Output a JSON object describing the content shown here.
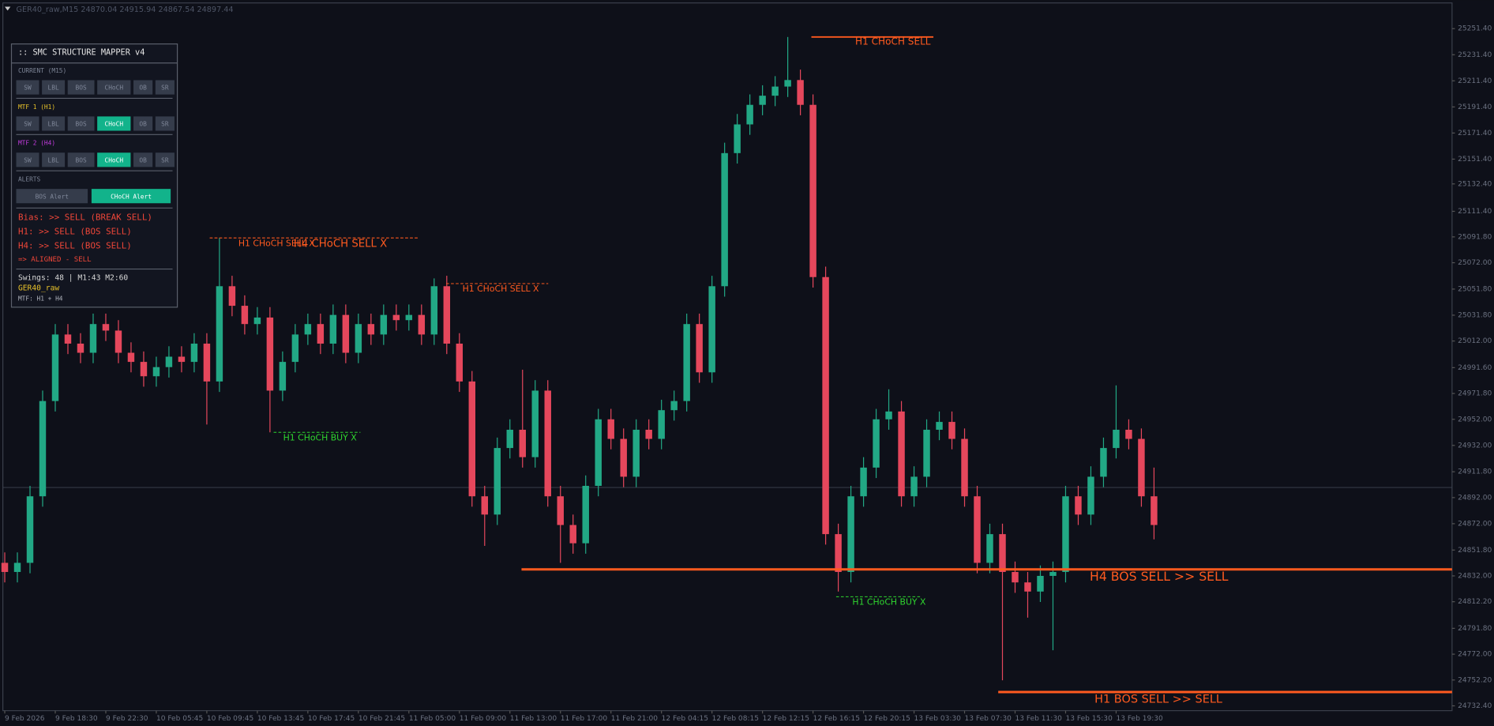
{
  "header": "GER40_raw,M15  24870.04 24915.94 24867.54 24897.44",
  "chart_data": {
    "type": "candlestick",
    "up_color": "#22a885",
    "down_color": "#e5475c",
    "ylim": [
      24728.7,
      25271.1
    ],
    "yticks": [
      {
        "value": 25251.4,
        "label": "25251.40"
      },
      {
        "value": 25231.4,
        "label": "25231.40"
      },
      {
        "value": 25211.4,
        "label": "25211.40"
      },
      {
        "value": 25191.4,
        "label": "25191.40"
      },
      {
        "value": 25171.4,
        "label": "25171.40"
      },
      {
        "value": 25151.4,
        "label": "25151.40"
      },
      {
        "value": 25132.4,
        "label": "25132.40"
      },
      {
        "value": 25111.4,
        "label": "25111.40"
      },
      {
        "value": 25091.8,
        "label": "25091.80"
      },
      {
        "value": 25072,
        "label": "25072.00"
      },
      {
        "value": 25051.8,
        "label": "25051.80"
      },
      {
        "value": 25031.8,
        "label": "25031.80"
      },
      {
        "value": 25012,
        "label": "25012.00"
      },
      {
        "value": 24991.6,
        "label": "24991.60"
      },
      {
        "value": 24971.8,
        "label": "24971.80"
      },
      {
        "value": 24952,
        "label": "24952.00"
      },
      {
        "value": 24932,
        "label": "24932.00"
      },
      {
        "value": 24911.8,
        "label": "24911.80"
      },
      {
        "value": 24892,
        "label": "24892.00"
      },
      {
        "value": 24872,
        "label": "24872.00"
      },
      {
        "value": 24851.8,
        "label": "24851.80"
      },
      {
        "value": 24832,
        "label": "24832.00"
      },
      {
        "value": 24812.2,
        "label": "24812.20"
      },
      {
        "value": 24791.8,
        "label": "24791.80"
      },
      {
        "value": 24772,
        "label": "24772.00"
      },
      {
        "value": 24752.2,
        "label": "24752.20"
      },
      {
        "value": 24732.4,
        "label": "24732.40"
      }
    ],
    "xlim": [
      -0.15,
      114.6
    ],
    "xticks": [
      {
        "value": 0,
        "label": "9 Feb 2026"
      },
      {
        "value": 4,
        "label": "9 Feb 18:30"
      },
      {
        "value": 8,
        "label": "9 Feb 22:30"
      },
      {
        "value": 12,
        "label": "10 Feb 05:45"
      },
      {
        "value": 16,
        "label": "10 Feb 09:45"
      },
      {
        "value": 20,
        "label": "10 Feb 13:45"
      },
      {
        "value": 24,
        "label": "10 Feb 17:45"
      },
      {
        "value": 28,
        "label": "10 Feb 21:45"
      },
      {
        "value": 32,
        "label": "11 Feb 05:00"
      },
      {
        "value": 36,
        "label": "11 Feb 09:00"
      },
      {
        "value": 40,
        "label": "11 Feb 13:00"
      },
      {
        "value": 44,
        "label": "11 Feb 17:00"
      },
      {
        "value": 48,
        "label": "11 Feb 21:00"
      },
      {
        "value": 52,
        "label": "12 Feb 04:15"
      },
      {
        "value": 56,
        "label": "12 Feb 08:15"
      },
      {
        "value": 60,
        "label": "12 Feb 12:15"
      },
      {
        "value": 64,
        "label": "12 Feb 16:15"
      },
      {
        "value": 68,
        "label": "12 Feb 20:15"
      },
      {
        "value": 72,
        "label": "13 Feb 03:30"
      },
      {
        "value": 76,
        "label": "13 Feb 07:30"
      },
      {
        "value": 80,
        "label": "13 Feb 11:30"
      },
      {
        "value": 84,
        "label": "13 Feb 15:30"
      },
      {
        "value": 88,
        "label": "13 Feb 19:30"
      }
    ],
    "open": [
      24842,
      24835,
      24842,
      24893,
      24966,
      25017,
      25010,
      25003,
      25025,
      25020,
      25003,
      24996,
      24985,
      24992,
      25000,
      24996,
      25010,
      24981,
      25054,
      25039,
      25025,
      25030,
      24974,
      24996,
      25017,
      25025,
      25010,
      25032,
      25003,
      25025,
      25017,
      25032,
      25028,
      25032,
      25017,
      25054,
      25010,
      24981,
      24893,
      24879,
      24930,
      24944,
      24923,
      24974,
      24893,
      24871,
      24857,
      24901,
      24952,
      24937,
      24908,
      24944,
      24937,
      24959,
      24966,
      25025,
      24988,
      25054,
      25156,
      25178,
      25193,
      25200,
      25207,
      25212,
      25193,
      25061,
      24864,
      24835,
      24893,
      24915,
      24952,
      24958,
      24893,
      24908,
      24944,
      24950,
      24937,
      24893,
      24842,
      24864,
      24835,
      24827,
      24820,
      24832,
      24835,
      24893,
      24879,
      24908,
      24930,
      24944,
      24937,
      24893
    ],
    "high": [
      24850,
      24850,
      24901,
      24974,
      25025,
      25025,
      25018,
      25033,
      25033,
      25028,
      25011,
      25004,
      25000,
      25008,
      25008,
      25018,
      25018,
      25091,
      25062,
      25047,
      25038,
      25038,
      25004,
      25025,
      25033,
      25033,
      25040,
      25040,
      25033,
      25033,
      25040,
      25040,
      25040,
      25040,
      25060,
      25062,
      25018,
      24989,
      24901,
      24938,
      24952,
      24990,
      24982,
      24982,
      24901,
      24879,
      24909,
      24960,
      24960,
      24945,
      24952,
      24952,
      24967,
      24974,
      25033,
      25033,
      25062,
      25164,
      25186,
      25201,
      25208,
      25215,
      25245,
      25220,
      25201,
      25069,
      24872,
      24901,
      24923,
      24960,
      24975,
      24966,
      24916,
      24952,
      24958,
      24958,
      24945,
      24901,
      24872,
      24872,
      24843,
      24835,
      24840,
      24843,
      24901,
      24901,
      24916,
      24938,
      24978,
      24952,
      24945,
      24915
    ],
    "low": [
      24827,
      24827,
      24834,
      24885,
      24958,
      25002,
      24995,
      24995,
      25012,
      24995,
      24988,
      24977,
      24977,
      24984,
      24988,
      24988,
      24948,
      24973,
      25031,
      25017,
      25017,
      24942,
      24966,
      24988,
      25009,
      25002,
      25002,
      24995,
      24995,
      25009,
      25009,
      25020,
      25020,
      25009,
      25009,
      25002,
      24973,
      24885,
      24855,
      24871,
      24922,
      24915,
      24915,
      24885,
      24842,
      24849,
      24849,
      24893,
      24929,
      24900,
      24900,
      24929,
      24929,
      24951,
      24958,
      24980,
      24980,
      25046,
      25148,
      25170,
      25185,
      25192,
      25199,
      25185,
      25053,
      24856,
      24820,
      24827,
      24885,
      24907,
      24944,
      24885,
      24885,
      24900,
      24936,
      24929,
      24885,
      24834,
      24834,
      24752,
      24819,
      24800,
      24812,
      24775,
      24827,
      24871,
      24871,
      24900,
      24922,
      24929,
      24885,
      24860
    ],
    "close": [
      24835,
      24842,
      24893,
      24966,
      25017,
      25010,
      25003,
      25025,
      25020,
      25003,
      24996,
      24985,
      24992,
      25000,
      24996,
      25010,
      24981,
      25054,
      25039,
      25025,
      25030,
      24974,
      24996,
      25017,
      25025,
      25010,
      25032,
      25003,
      25025,
      25017,
      25032,
      25028,
      25032,
      25017,
      25054,
      25010,
      24981,
      24893,
      24879,
      24930,
      24944,
      24923,
      24974,
      24893,
      24871,
      24857,
      24901,
      24952,
      24937,
      24908,
      24944,
      24937,
      24959,
      24966,
      25025,
      24988,
      25054,
      25156,
      25178,
      25193,
      25200,
      25207,
      25212,
      25193,
      25061,
      24864,
      24835,
      24893,
      24915,
      24952,
      24958,
      24893,
      24908,
      24944,
      24950,
      24937,
      24893,
      24842,
      24864,
      24835,
      24827,
      24820,
      24832,
      24835,
      24893,
      24879,
      24908,
      24930,
      24944,
      24937,
      24893,
      24871
    ],
    "levels": [
      {
        "price": 25245,
        "label": "H1 CHoCH SELL",
        "color": "#ff5a1f"
      },
      {
        "price": 25091,
        "label": "H1 CHoCH SELL X",
        "color": "#ff5a1f"
      },
      {
        "price": 25091,
        "label": "H4 CHoCH SELL X",
        "color": "#ff5a1f"
      },
      {
        "price": 25056,
        "label": "H1 CHoCH SELL X",
        "color": "#ff5a1f"
      },
      {
        "price": 24942,
        "label": "H1 CHoCH BUY X",
        "color": "#2fd62f"
      },
      {
        "price": 24816,
        "label": "H1 CHoCH BUY X",
        "color": "#2fd62f"
      },
      {
        "price": 24837,
        "label": "H4 BOS SELL  >> SELL",
        "color": "#ff5a1f"
      },
      {
        "price": 24743,
        "label": "H1 BOS SELL  >> SELL",
        "color": "#ff5a1f"
      }
    ]
  },
  "panel": {
    "title": ":: SMC STRUCTURE MAPPER v4",
    "sections": [
      {
        "label": "CURRENT (M15)",
        "color": "#7d8596",
        "buttons": [
          "SW",
          "LBL",
          "BOS",
          "CHoCH",
          "OB",
          "SR"
        ],
        "active": []
      },
      {
        "label": "MTF 1 (H1)",
        "color": "#e8c22a",
        "buttons": [
          "SW",
          "LBL",
          "BOS",
          "CHoCH",
          "OB",
          "SR"
        ],
        "active": [
          "CHoCH"
        ]
      },
      {
        "label": "MTF 2 (H4)",
        "color": "#c43ce0",
        "buttons": [
          "SW",
          "LBL",
          "BOS",
          "CHoCH",
          "OB",
          "SR"
        ],
        "active": [
          "CHoCH"
        ]
      }
    ],
    "alerts": {
      "label": "ALERTS",
      "buttons": [
        "BOS Alert",
        "CHoCH Alert"
      ],
      "active": [
        "CHoCH Alert"
      ]
    },
    "status": [
      "Bias: >> SELL (BREAK SELL)",
      "H1:  >> SELL (BOS SELL)",
      "H4:  >> SELL (BOS SELL)",
      "=> ALIGNED - SELL"
    ],
    "swings": "Swings: 48 | M1:43 M2:60",
    "symbol": "GER40_raw",
    "mtf": "MTF: H1 + H4"
  }
}
